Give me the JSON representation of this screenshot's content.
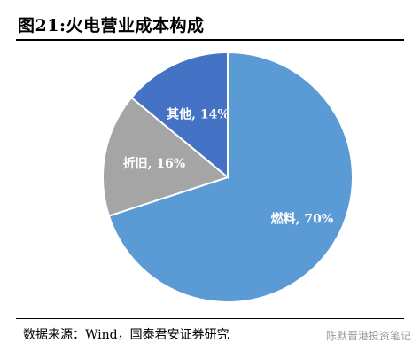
{
  "figure": {
    "title": "图21:火电营业成本构成",
    "source": "数据来源：Wind，国泰君安证券研究",
    "watermark": "陈默晋港投资笔记"
  },
  "chart_data": {
    "type": "pie",
    "title": "",
    "slices": [
      {
        "name": "燃料",
        "value": 70,
        "label": "燃料, 70%",
        "color": "#5b9bd5"
      },
      {
        "name": "折旧",
        "value": 16,
        "label": "折旧, 16%",
        "color": "#a5a5a5"
      },
      {
        "name": "其他",
        "value": 14,
        "label": "其他, 14%",
        "color": "#4472c4"
      }
    ],
    "start": "12 o'clock",
    "direction": "clockwise",
    "data_labels": "inside, bold white",
    "legend": "none",
    "slice_border_color": "#ffffff"
  }
}
